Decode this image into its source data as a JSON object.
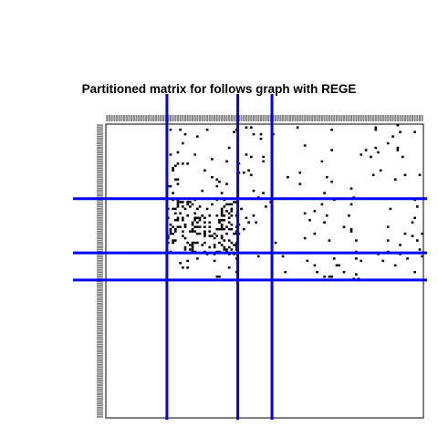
{
  "chart_data": {
    "type": "heatmap",
    "title": "Partitioned matrix for follows graph with REGE",
    "xlabel": "",
    "ylabel": "",
    "n_nodes": 130,
    "partition_color": "#0000FF",
    "cell_color": "#000000",
    "row_partition_after": [
      33,
      57,
      69
    ],
    "col_partition_after": [
      25,
      54,
      68
    ],
    "tick_labels": "unreadable",
    "blocks": [
      {
        "rows": [
          1,
          33
        ],
        "cols": [
          26,
          54
        ],
        "density": 0.03
      },
      {
        "rows": [
          1,
          33
        ],
        "cols": [
          55,
          68
        ],
        "density": 0.03
      },
      {
        "rows": [
          1,
          33
        ],
        "cols": [
          69,
          130
        ],
        "density": 0.015
      },
      {
        "rows": [
          34,
          57
        ],
        "cols": [
          26,
          54
        ],
        "density": 0.22
      },
      {
        "rows": [
          34,
          57
        ],
        "cols": [
          55,
          68
        ],
        "density": 0.03
      },
      {
        "rows": [
          34,
          57
        ],
        "cols": [
          69,
          130
        ],
        "density": 0.02
      },
      {
        "rows": [
          58,
          69
        ],
        "cols": [
          26,
          54
        ],
        "density": 0.03
      },
      {
        "rows": [
          58,
          69
        ],
        "cols": [
          55,
          68
        ],
        "density": 0.02
      },
      {
        "rows": [
          58,
          69
        ],
        "cols": [
          69,
          130
        ],
        "density": 0.03
      }
    ]
  }
}
